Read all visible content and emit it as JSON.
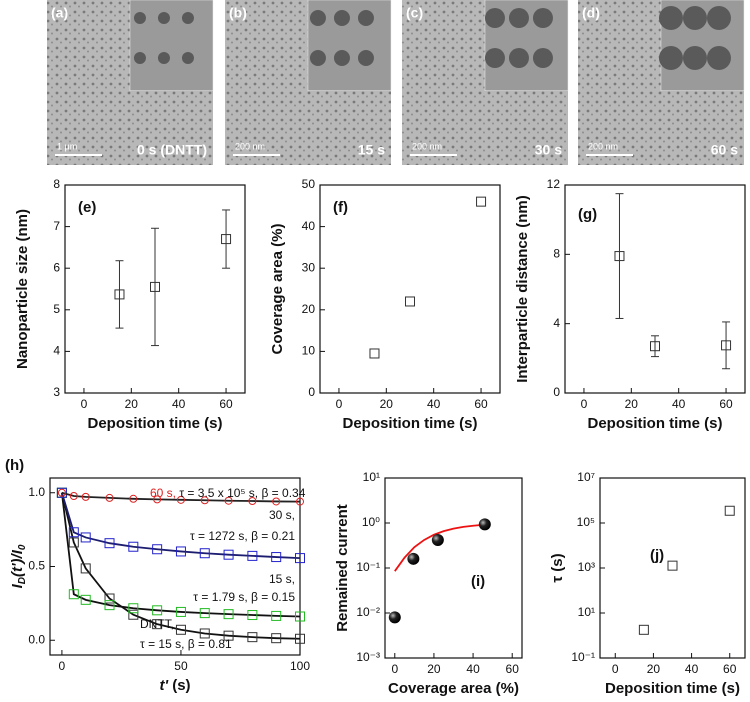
{
  "images": [
    {
      "label": "(a)",
      "scale": "1 μm",
      "time": "0 s (DNTT)"
    },
    {
      "label": "(b)",
      "scale": "200 nm",
      "time": "15 s"
    },
    {
      "label": "(c)",
      "scale": "200 nm",
      "time": "30 s"
    },
    {
      "label": "(d)",
      "scale": "200 nm",
      "time": "60 s"
    }
  ],
  "chart_data": [
    {
      "type": "scatter",
      "panel_label": "(e)",
      "xlabel": "Deposition time (s)",
      "ylabel": "Nanoparticle size (nm)",
      "xlim": [
        -8,
        68
      ],
      "xticks": [
        0,
        20,
        40,
        60
      ],
      "ylim": [
        3,
        8
      ],
      "yticks": [
        3,
        4,
        5,
        6,
        7,
        8
      ],
      "series": [
        {
          "color": "#333333",
          "marker": "square-open",
          "x": [
            15,
            30,
            60
          ],
          "values": [
            5.37,
            5.55,
            6.7
          ],
          "errors": [
            0.81,
            1.41,
            0.7
          ]
        }
      ]
    },
    {
      "type": "scatter",
      "panel_label": "(f)",
      "xlabel": "Deposition time (s)",
      "ylabel": "Coverage area (%)",
      "xlim": [
        -8,
        68
      ],
      "xticks": [
        0,
        20,
        40,
        60
      ],
      "ylim": [
        0,
        50
      ],
      "yticks": [
        0,
        10,
        20,
        30,
        40,
        50
      ],
      "series": [
        {
          "color": "#333333",
          "marker": "square-open",
          "x": [
            15,
            30,
            60
          ],
          "values": [
            9.5,
            22,
            46
          ]
        }
      ]
    },
    {
      "type": "scatter",
      "panel_label": "(g)",
      "xlabel": "Deposition time (s)",
      "ylabel": "Interparticle distance (nm)",
      "xlim": [
        -8,
        68
      ],
      "xticks": [
        0,
        20,
        40,
        60
      ],
      "ylim": [
        0,
        12
      ],
      "yticks": [
        0,
        4,
        8,
        12
      ],
      "series": [
        {
          "color": "#333333",
          "marker": "square-open",
          "x": [
            15,
            30,
            60
          ],
          "values": [
            7.9,
            2.7,
            2.75
          ],
          "errors": [
            3.6,
            0.6,
            1.35
          ]
        }
      ]
    },
    {
      "type": "line",
      "panel_label": "(h)",
      "xlabel_parts": [
        "t'",
        " (s)"
      ],
      "ylabel_parts": [
        "I",
        "D",
        "(t')/I",
        "0"
      ],
      "xlim": [
        -5,
        100
      ],
      "xticks": [
        0,
        50,
        100
      ],
      "ylim": [
        -0.1,
        1.1
      ],
      "yticks": [
        {
          "value": 0,
          "label": "0.0"
        },
        {
          "value": 0.5,
          "label": "0.5"
        },
        {
          "value": 1,
          "label": "1.0"
        }
      ],
      "series": [
        {
          "name": "DNTT,",
          "annotation": "τ = 15 s, β = 0.81",
          "color": "#333333",
          "line_color": "#111111",
          "marker": "square-open",
          "x": [
            0,
            5,
            10,
            20,
            30,
            40,
            50,
            60,
            70,
            80,
            90,
            100
          ],
          "values": [
            1,
            0.663,
            0.487,
            0.283,
            0.173,
            0.109,
            0.071,
            0.046,
            0.031,
            0.021,
            0.014,
            0.01
          ]
        },
        {
          "name": "15 s,",
          "annotation": "τ = 1.79 s, β = 0.15",
          "color": "#22bb22",
          "line_color": "#111111",
          "marker": "square-open",
          "x": [
            0,
            5,
            10,
            20,
            30,
            40,
            50,
            60,
            70,
            80,
            90,
            100
          ],
          "values": [
            1,
            0.312,
            0.274,
            0.238,
            0.217,
            0.203,
            0.192,
            0.184,
            0.177,
            0.171,
            0.165,
            0.161
          ]
        },
        {
          "name": "30 s,",
          "annotation": "τ = 1272 s, β = 0.21",
          "color": "#2222cc",
          "line_color": "#1c1c70",
          "marker": "square-open",
          "x": [
            0,
            5,
            10,
            20,
            30,
            40,
            50,
            60,
            70,
            80,
            90,
            100
          ],
          "values": [
            1,
            0.732,
            0.697,
            0.658,
            0.634,
            0.617,
            0.602,
            0.59,
            0.58,
            0.572,
            0.564,
            0.557
          ]
        },
        {
          "name": "60 s,",
          "annotation": "τ = 3.5 x 10⁵ s, β = 0.34",
          "color": "#dd2222",
          "line_color": "#222222",
          "marker": "circle-open",
          "x": [
            0,
            5,
            10,
            20,
            30,
            40,
            50,
            60,
            70,
            80,
            90,
            100
          ],
          "values": [
            1,
            0.978,
            0.972,
            0.965,
            0.959,
            0.955,
            0.952,
            0.949,
            0.946,
            0.944,
            0.941,
            0.94
          ]
        }
      ]
    },
    {
      "type": "scatter",
      "panel_label": "(i)",
      "xlabel": "Coverage area (%)",
      "ylabel": "Remained current",
      "log_y": true,
      "xlim": [
        -5,
        65
      ],
      "xticks": [
        0,
        20,
        40,
        60
      ],
      "ylim": [
        0.001,
        10
      ],
      "yticks": [
        {
          "value": 0.001,
          "label": "10⁻³"
        },
        {
          "value": 0.01,
          "label": "10⁻²"
        },
        {
          "value": 0.1,
          "label": "10⁻¹"
        },
        {
          "value": 1,
          "label": "10⁰"
        },
        {
          "value": 10,
          "label": "10¹"
        }
      ],
      "series": [
        {
          "color": "#ee1111",
          "marker": "none",
          "line": true,
          "x": [
            0,
            5,
            10,
            15,
            20,
            25,
            30,
            35,
            40,
            46
          ],
          "values": [
            0.085,
            0.17,
            0.29,
            0.42,
            0.55,
            0.66,
            0.75,
            0.82,
            0.87,
            0.92
          ]
        },
        {
          "color": "#111111",
          "marker": "sphere",
          "x": [
            0,
            9.5,
            22,
            46
          ],
          "values": [
            0.008,
            0.16,
            0.42,
            0.93
          ]
        }
      ]
    },
    {
      "type": "scatter",
      "panel_label": "(j)",
      "xlabel": "Deposition time (s)",
      "ylabel": "τ (s)",
      "log_y": true,
      "xlim": [
        -8,
        68
      ],
      "xticks": [
        0,
        20,
        40,
        60
      ],
      "ylim": [
        0.1,
        10000000
      ],
      "yticks": [
        {
          "value": 0.1,
          "label": "10⁻¹"
        },
        {
          "value": 10,
          "label": "10¹"
        },
        {
          "value": 1000,
          "label": "10³"
        },
        {
          "value": 100000,
          "label": "10⁵"
        },
        {
          "value": 10000000,
          "label": "10⁷"
        }
      ],
      "series": [
        {
          "color": "#333333",
          "marker": "square-open",
          "x": [
            15,
            30,
            60
          ],
          "values": [
            1.79,
            1272,
            350000
          ]
        }
      ]
    }
  ]
}
